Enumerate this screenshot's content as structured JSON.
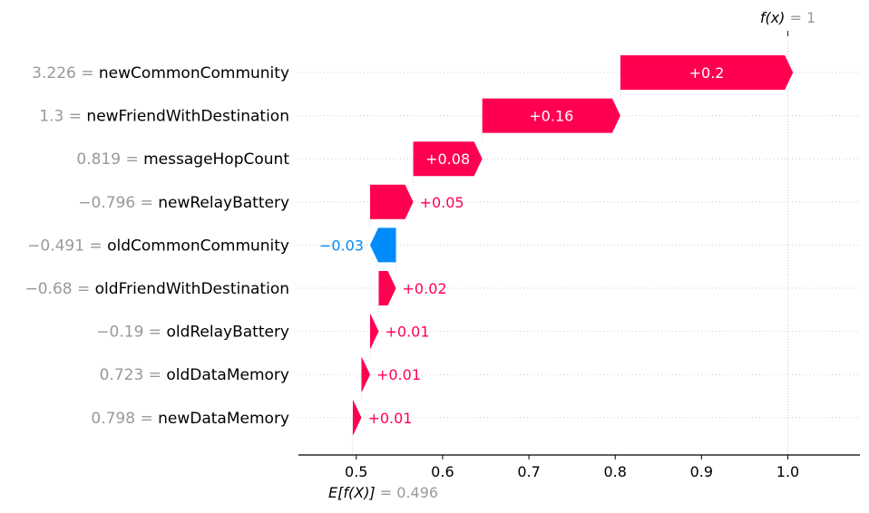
{
  "chart_data": {
    "type": "waterfall",
    "base_value": 0.496,
    "final_value": 1,
    "fx_label": {
      "name": "f(x)",
      "eq": " = ",
      "value": "1"
    },
    "ex_label": {
      "name": "E[f(X)]",
      "eq": " = ",
      "value": "0.496"
    },
    "features": [
      {
        "value": "3.226",
        "name": "newCommonCommunity",
        "contribution": 0.2,
        "label": "+0.2"
      },
      {
        "value": "1.3",
        "name": "newFriendWithDestination",
        "contribution": 0.16,
        "label": "+0.16"
      },
      {
        "value": "0.819",
        "name": "messageHopCount",
        "contribution": 0.08,
        "label": "+0.08"
      },
      {
        "value": "−0.796",
        "name": "newRelayBattery",
        "contribution": 0.05,
        "label": "+0.05"
      },
      {
        "value": "−0.491",
        "name": "oldCommonCommunity",
        "contribution": -0.03,
        "label": "−0.03"
      },
      {
        "value": "−0.68",
        "name": "oldFriendWithDestination",
        "contribution": 0.02,
        "label": "+0.02"
      },
      {
        "value": "−0.19",
        "name": "oldRelayBattery",
        "contribution": 0.01,
        "label": "+0.01"
      },
      {
        "value": "0.723",
        "name": "oldDataMemory",
        "contribution": 0.01,
        "label": "+0.01"
      },
      {
        "value": "0.798",
        "name": "newDataMemory",
        "contribution": 0.01,
        "label": "+0.01"
      }
    ],
    "xticks": [
      "0.5",
      "0.6",
      "0.7",
      "0.8",
      "0.9",
      "1.0"
    ],
    "xlim": [
      0.433,
      1.084
    ],
    "colors": {
      "positive": "#ff0051",
      "negative": "#008bfb",
      "label_gray": "#999999",
      "gridline": "#cccccc"
    }
  }
}
